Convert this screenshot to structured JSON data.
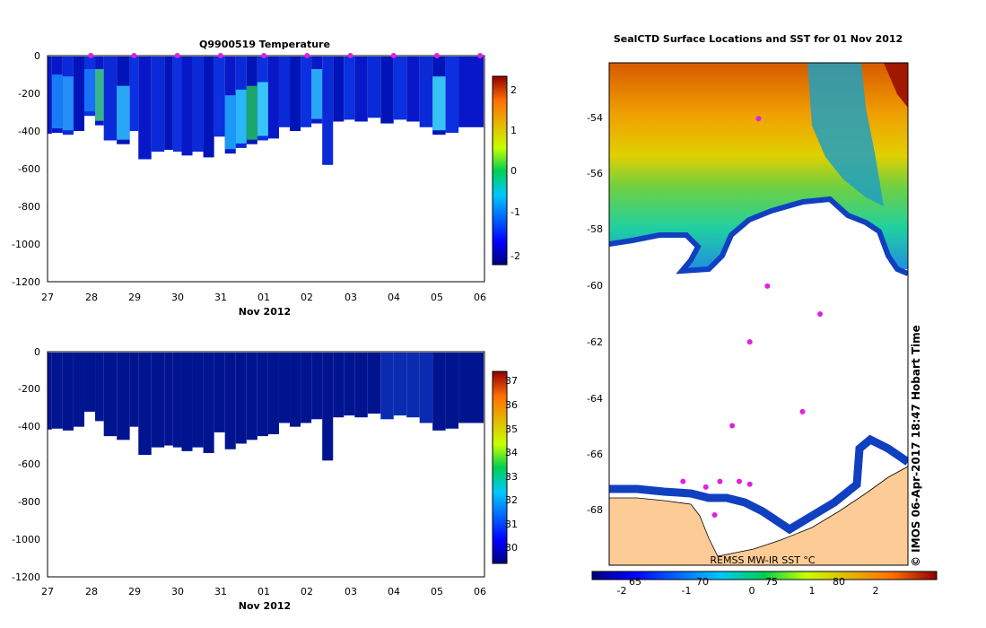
{
  "panels": {
    "temperature": {
      "title": "Q9900519  Temperature",
      "xlabel": "Nov 2012",
      "x_ticks": [
        "27",
        "28",
        "29",
        "30",
        "31",
        "01",
        "02",
        "03",
        "04",
        "05",
        "06"
      ],
      "y_ticks": [
        "0",
        "-200",
        "-400",
        "-600",
        "-800",
        "-1000",
        "-1200"
      ],
      "colorbar_ticks": [
        "2",
        "1",
        "0",
        "-1",
        "-2"
      ]
    },
    "salinity": {
      "xlabel": "Nov 2012",
      "x_ticks": [
        "27",
        "28",
        "29",
        "30",
        "31",
        "01",
        "02",
        "03",
        "04",
        "05",
        "06"
      ],
      "y_ticks": [
        "0",
        "-200",
        "-400",
        "-600",
        "-800",
        "-1000",
        "-1200"
      ],
      "colorbar_ticks": [
        "37",
        "36",
        "35",
        "34",
        "33",
        "32",
        "31",
        "30"
      ]
    },
    "map": {
      "title": "SealCTD Surface Locations and SST for 01 Nov 2012",
      "lat_ticks": [
        "-54",
        "-56",
        "-58",
        "-60",
        "-62",
        "-64",
        "-66",
        "-68"
      ],
      "legend_label": "REMSS MW-IR SST °C",
      "colorbar_ticks": [
        "-2",
        "-1",
        "0",
        "1",
        "2"
      ],
      "lon_ticks": [
        "65",
        "70",
        "75",
        "80"
      ],
      "credit": "© IMOS 06-Apr-2017 18:47 Hobart Time"
    }
  },
  "chart_data": [
    {
      "type": "heatmap",
      "title": "Q9900519  Temperature",
      "xlabel": "Nov 2012",
      "ylabel": "",
      "x_range": [
        27,
        37.1
      ],
      "ylim": [
        -1200,
        0
      ],
      "colorbar": {
        "min": -2.3,
        "max": 2.3,
        "ticks": [
          2,
          1,
          0,
          -1,
          -2
        ]
      },
      "profile_max_depths": [
        {
          "day": 27.1,
          "depth": -410
        },
        {
          "day": 27.35,
          "depth": -420
        },
        {
          "day": 27.6,
          "depth": -400
        },
        {
          "day": 27.85,
          "depth": -320
        },
        {
          "day": 28.1,
          "depth": -370
        },
        {
          "day": 28.3,
          "depth": -450
        },
        {
          "day": 28.6,
          "depth": -470
        },
        {
          "day": 28.9,
          "depth": -400
        },
        {
          "day": 29.1,
          "depth": -550
        },
        {
          "day": 29.4,
          "depth": -510
        },
        {
          "day": 29.7,
          "depth": -500
        },
        {
          "day": 29.9,
          "depth": -510
        },
        {
          "day": 30.1,
          "depth": -530
        },
        {
          "day": 30.35,
          "depth": -510
        },
        {
          "day": 30.6,
          "depth": -540
        },
        {
          "day": 30.85,
          "depth": -430
        },
        {
          "day": 31.1,
          "depth": -520
        },
        {
          "day": 31.35,
          "depth": -490
        },
        {
          "day": 31.6,
          "depth": -470
        },
        {
          "day": 31.85,
          "depth": -450
        },
        {
          "day": 32.1,
          "depth": -440
        },
        {
          "day": 32.35,
          "depth": -380
        },
        {
          "day": 32.6,
          "depth": -400
        },
        {
          "day": 32.85,
          "depth": -380
        },
        {
          "day": 33.1,
          "depth": -360
        },
        {
          "day": 33.35,
          "depth": -580
        },
        {
          "day": 33.6,
          "depth": -350
        },
        {
          "day": 33.85,
          "depth": -340
        },
        {
          "day": 34.1,
          "depth": -350
        },
        {
          "day": 34.4,
          "depth": -330
        },
        {
          "day": 34.7,
          "depth": -360
        },
        {
          "day": 35.0,
          "depth": -340
        },
        {
          "day": 35.3,
          "depth": -350
        },
        {
          "day": 35.6,
          "depth": -380
        },
        {
          "day": 35.9,
          "depth": -420
        },
        {
          "day": 36.2,
          "depth": -410
        },
        {
          "day": 36.5,
          "depth": -380
        }
      ]
    },
    {
      "type": "heatmap",
      "title": "",
      "xlabel": "Nov 2012",
      "ylabel": "",
      "x_range": [
        27,
        37.1
      ],
      "ylim": [
        -1200,
        0
      ],
      "colorbar": {
        "min": 29.4,
        "max": 37.2,
        "ticks": [
          37,
          36,
          35,
          34,
          33,
          32,
          31,
          30
        ]
      }
    },
    {
      "type": "scatter",
      "title": "SealCTD Surface Locations and SST for 01 Nov 2012",
      "xlabel": "",
      "ylabel": "",
      "ylim": [
        -70,
        -52
      ],
      "colorbar": {
        "label": "REMSS MW-IR SST °C",
        "min": -2.7,
        "max": 2.7,
        "ticks": [
          -2,
          -1,
          0,
          1,
          2
        ]
      },
      "points": [
        {
          "lon": 69.2,
          "lat": -67.0
        },
        {
          "lon": 70.5,
          "lat": -67.2
        },
        {
          "lon": 71.3,
          "lat": -67.0
        },
        {
          "lon": 72.4,
          "lat": -67.0
        },
        {
          "lon": 73.0,
          "lat": -67.1
        },
        {
          "lon": 71.0,
          "lat": -68.2
        },
        {
          "lon": 72.0,
          "lat": -65.0
        },
        {
          "lon": 73.0,
          "lat": -62.0
        },
        {
          "lon": 74.0,
          "lat": -60.0
        },
        {
          "lon": 76.0,
          "lat": -64.5
        },
        {
          "lon": 77.0,
          "lat": -61.0
        },
        {
          "lon": 73.5,
          "lat": -54.0
        }
      ]
    }
  ]
}
